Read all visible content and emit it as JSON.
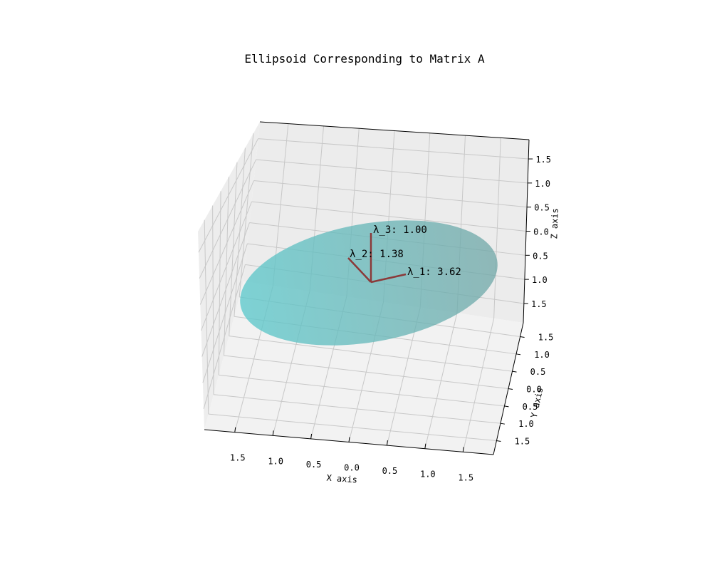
{
  "chart_data": {
    "type": "3d-surface",
    "title": "Ellipsoid Corresponding to Matrix A",
    "xlabel": "X axis",
    "ylabel": "Y axis",
    "zlabel": "Z axis",
    "x_ticks": [
      "1.5",
      "1.0",
      "0.5",
      "0.0",
      "0.5",
      "1.0",
      "1.5"
    ],
    "y_ticks": [
      "1.5",
      "1.0",
      "0.5",
      "0.0",
      "0.5",
      "1.0",
      "1.5"
    ],
    "z_ticks": [
      "1.5",
      "1.0",
      "0.5",
      "0.0",
      "0.5",
      "1.0",
      "1.5"
    ],
    "xlim": [
      -1.9,
      1.9
    ],
    "ylim": [
      -1.9,
      1.9
    ],
    "zlim": [
      -1.9,
      1.9
    ],
    "grid": true,
    "surface_color": "#5ec8c8",
    "vector_color": "#8b3a3a",
    "eigenvalues": [
      {
        "label": "λ_1: 3.62",
        "value": 3.62
      },
      {
        "label": "λ_2: 1.38",
        "value": 1.38
      },
      {
        "label": "λ_3: 1.00",
        "value": 1.0
      }
    ]
  }
}
